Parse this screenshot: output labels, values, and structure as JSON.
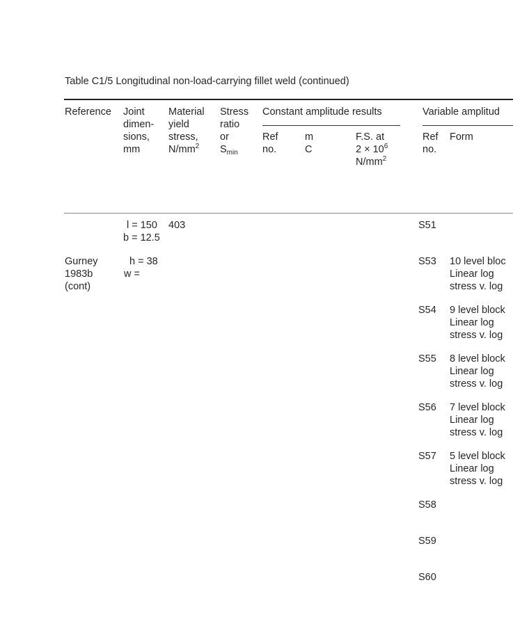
{
  "caption": "Table C1/5 Longitudinal non-load-carrying fillet weld (continued)",
  "headers": {
    "reference": "Reference",
    "joint": [
      "Joint",
      "dimen-",
      "sions,",
      "mm"
    ],
    "material": [
      "Material",
      "yield",
      "stress,",
      "N/mm",
      "2"
    ],
    "stress_ratio": [
      "Stress",
      "ratio",
      "or",
      "S",
      "min"
    ],
    "constant_group": "Constant amplitude results",
    "constant_ref": [
      "Ref",
      "no."
    ],
    "constant_m": [
      "m",
      "C"
    ],
    "constant_fs": [
      "F.S. at",
      "2 × 10",
      "6",
      "N/mm",
      "2"
    ],
    "variable_group": "Variable amplitud",
    "variable_ref": [
      "Ref",
      "no."
    ],
    "variable_form": "Form"
  },
  "body": {
    "reference": [
      "Gurney",
      "1983b",
      "(cont)"
    ],
    "joint": [
      "l = 150",
      "b = 12.5",
      "h = 38",
      "w ="
    ],
    "material": "403",
    "rows": [
      {
        "ref": "S51",
        "form": []
      },
      {
        "ref": "S53",
        "form": [
          "10 level bloc",
          "Linear log",
          "stress v. log"
        ]
      },
      {
        "ref": "S54",
        "form": [
          "9 level block",
          "Linear log",
          "stress v. log"
        ]
      },
      {
        "ref": "S55",
        "form": [
          "8 level block",
          "Linear log",
          "stress v. log"
        ]
      },
      {
        "ref": "S56",
        "form": [
          "7 level block",
          "Linear log",
          "stress v. log"
        ]
      },
      {
        "ref": "S57",
        "form": [
          "5 level block",
          "Linear log",
          "stress v. log"
        ]
      },
      {
        "ref": "S58",
        "form": []
      },
      {
        "ref": "S59",
        "form": []
      },
      {
        "ref": "S60",
        "form": []
      }
    ]
  }
}
